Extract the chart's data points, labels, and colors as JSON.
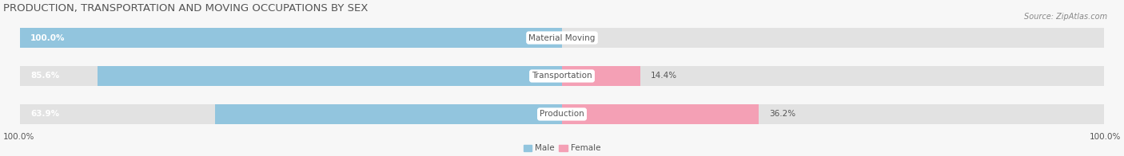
{
  "title": "PRODUCTION, TRANSPORTATION AND MOVING OCCUPATIONS BY SEX",
  "source": "Source: ZipAtlas.com",
  "categories": [
    "Material Moving",
    "Transportation",
    "Production"
  ],
  "male_values": [
    100.0,
    85.6,
    63.9
  ],
  "female_values": [
    0.0,
    14.4,
    36.2
  ],
  "male_color": "#92C5DE",
  "female_color": "#F4A0B5",
  "bar_bg_color": "#E2E2E2",
  "bar_height": 0.52,
  "figsize": [
    14.06,
    1.96
  ],
  "dpi": 100,
  "left_label": "100.0%",
  "right_label": "100.0%",
  "title_fontsize": 9.5,
  "value_fontsize": 7.5,
  "category_fontsize": 7.5,
  "source_fontsize": 7,
  "legend_fontsize": 7.5,
  "title_color": "#555555",
  "source_color": "#888888",
  "text_white": "#FFFFFF",
  "text_dark": "#555555",
  "background_color": "#F7F7F7"
}
